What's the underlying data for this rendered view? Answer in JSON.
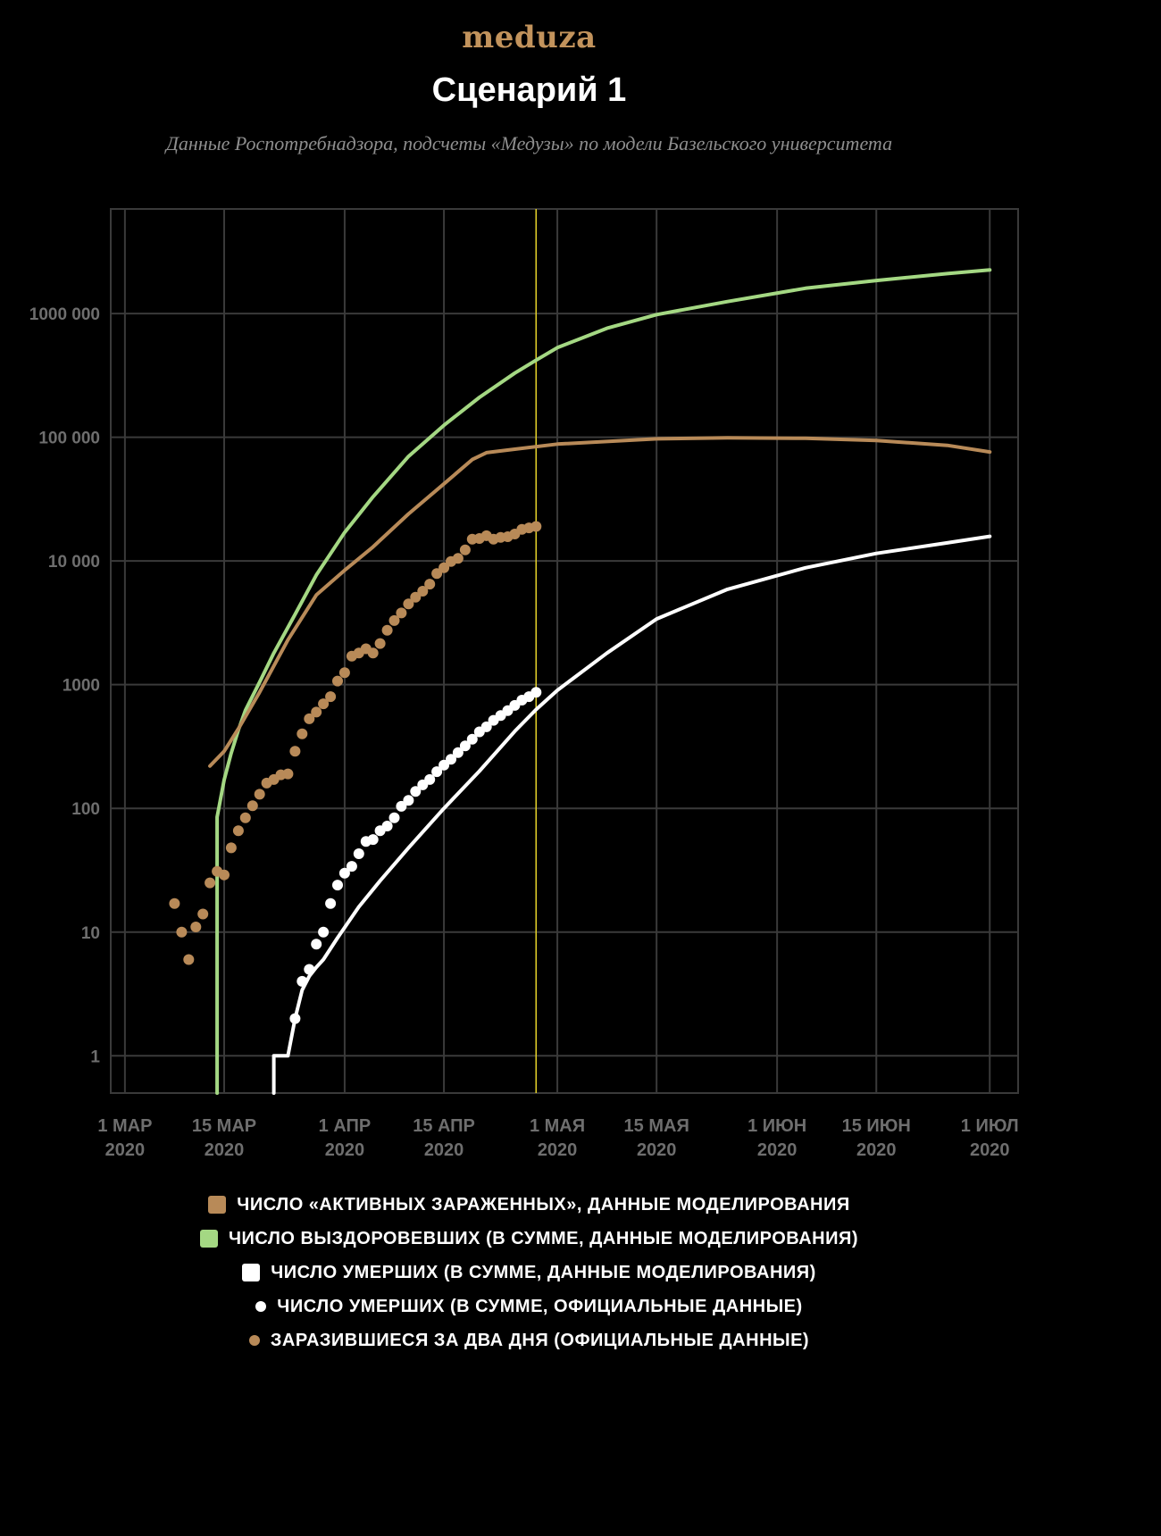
{
  "header": {
    "logo": "meduza",
    "title": "Сценарий 1",
    "subtitle": "Данные Роспотребнадзора, подсчеты «Медузы» по модели Базельского университета"
  },
  "colors": {
    "background": "#000000",
    "grid": "#3a3a3a",
    "tick_label": "#6e6e6e",
    "active": "#b88a58",
    "recovered": "#a4d883",
    "deaths": "#ffffff",
    "marker": "#e5d22a"
  },
  "legend": [
    {
      "label": "ЧИСЛО «АКТИВНЫХ ЗАРАЖЕННЫХ», ДАННЫЕ МОДЕЛИРОВАНИЯ",
      "color": "#b88a58",
      "shape": "square"
    },
    {
      "label": "ЧИСЛО ВЫЗДОРОВЕВШИХ (В СУММЕ, ДАННЫЕ МОДЕЛИРОВАНИЯ)",
      "color": "#a4d883",
      "shape": "square"
    },
    {
      "label": "ЧИСЛО УМЕРШИХ (В СУММЕ, ДАННЫЕ МОДЕЛИРОВАНИЯ)",
      "color": "#ffffff",
      "shape": "square"
    },
    {
      "label": "ЧИСЛО УМЕРШИХ (В СУММЕ, ОФИЦИАЛЬНЫЕ ДАННЫЕ)",
      "color": "#ffffff",
      "shape": "dot"
    },
    {
      "label": "ЗАРАЗИВШИЕСЯ ЗА ДВА ДНЯ (ОФИЦИАЛЬНЫЕ ДАННЫЕ)",
      "color": "#b88a58",
      "shape": "dot"
    }
  ],
  "chart_data": {
    "type": "line",
    "y_scale": "log",
    "ylim": [
      0.5,
      7000000
    ],
    "xlim": [
      "2020-02-28",
      "2020-07-05"
    ],
    "grid": true,
    "legend_position": "bottom",
    "x_ticks": [
      {
        "date": "2020-03-01",
        "label": [
          "1 МАР",
          "2020"
        ]
      },
      {
        "date": "2020-03-15",
        "label": [
          "15 МАР",
          "2020"
        ]
      },
      {
        "date": "2020-04-01",
        "label": [
          "1 АПР",
          "2020"
        ]
      },
      {
        "date": "2020-04-15",
        "label": [
          "15 АПР",
          "2020"
        ]
      },
      {
        "date": "2020-05-01",
        "label": [
          "1 МАЯ",
          "2020"
        ]
      },
      {
        "date": "2020-05-15",
        "label": [
          "15 МАЯ",
          "2020"
        ]
      },
      {
        "date": "2020-06-01",
        "label": [
          "1 ИЮН",
          "2020"
        ]
      },
      {
        "date": "2020-06-15",
        "label": [
          "15 ИЮН",
          "2020"
        ]
      },
      {
        "date": "2020-07-01",
        "label": [
          "1 ИЮЛ",
          "2020"
        ]
      }
    ],
    "y_ticks": [
      {
        "value": 1,
        "label": "1"
      },
      {
        "value": 10,
        "label": "10"
      },
      {
        "value": 100,
        "label": "100"
      },
      {
        "value": 1000,
        "label": "1000"
      },
      {
        "value": 10000,
        "label": "10 000"
      },
      {
        "value": 100000,
        "label": "100 000"
      },
      {
        "value": 1000000,
        "label": "1000 000"
      }
    ],
    "marker_line": {
      "date": "2020-04-28"
    },
    "series": [
      {
        "name": "ЧИСЛО ВЫЗДОРОВЕВШИХ (В СУММЕ, ДАННЫЕ МОДЕЛИРОВАНИЯ)",
        "kind": "line",
        "color": "#a4d883",
        "points": [
          [
            "2020-03-14",
            0.5
          ],
          [
            "2020-03-14",
            85
          ],
          [
            "2020-03-15",
            170
          ],
          [
            "2020-03-16",
            280
          ],
          [
            "2020-03-17",
            430
          ],
          [
            "2020-03-18",
            620
          ],
          [
            "2020-03-20",
            1050
          ],
          [
            "2020-03-22",
            1800
          ],
          [
            "2020-03-25",
            3700
          ],
          [
            "2020-03-28",
            7700
          ],
          [
            "2020-04-01",
            17000
          ],
          [
            "2020-04-05",
            33000
          ],
          [
            "2020-04-10",
            70000
          ],
          [
            "2020-04-15",
            125000
          ],
          [
            "2020-04-20",
            210000
          ],
          [
            "2020-04-25",
            330000
          ],
          [
            "2020-04-28",
            420000
          ],
          [
            "2020-05-01",
            530000
          ],
          [
            "2020-05-08",
            760000
          ],
          [
            "2020-05-15",
            980000
          ],
          [
            "2020-05-25",
            1250000
          ],
          [
            "2020-06-05",
            1600000
          ],
          [
            "2020-06-15",
            1850000
          ],
          [
            "2020-06-25",
            2100000
          ],
          [
            "2020-07-01",
            2250000
          ]
        ]
      },
      {
        "name": "ЧИСЛО «АКТИВНЫХ ЗАРАЖЕННЫХ», ДАННЫЕ МОДЕЛИРОВАНИЯ",
        "kind": "line",
        "color": "#b88a58",
        "points": [
          [
            "2020-03-13",
            220
          ],
          [
            "2020-03-15",
            290
          ],
          [
            "2020-03-17",
            440
          ],
          [
            "2020-03-20",
            870
          ],
          [
            "2020-03-24",
            2300
          ],
          [
            "2020-03-28",
            5300
          ],
          [
            "2020-04-01",
            8400
          ],
          [
            "2020-04-05",
            13000
          ],
          [
            "2020-04-10",
            24000
          ],
          [
            "2020-04-15",
            42000
          ],
          [
            "2020-04-19",
            66000
          ],
          [
            "2020-04-21",
            75000
          ],
          [
            "2020-04-25",
            80000
          ],
          [
            "2020-05-01",
            88000
          ],
          [
            "2020-05-15",
            97000
          ],
          [
            "2020-05-25",
            99000
          ],
          [
            "2020-06-05",
            98000
          ],
          [
            "2020-06-15",
            94000
          ],
          [
            "2020-06-25",
            86000
          ],
          [
            "2020-07-01",
            76000
          ]
        ]
      },
      {
        "name": "ЧИСЛО УМЕРШИХ (В СУММЕ, ДАННЫЕ МОДЕЛИРОВАНИЯ)",
        "kind": "line",
        "color": "#ffffff",
        "points": [
          [
            "2020-03-22",
            0.5
          ],
          [
            "2020-03-22",
            1
          ],
          [
            "2020-03-24",
            1
          ],
          [
            "2020-03-25",
            2
          ],
          [
            "2020-03-26",
            3.4
          ],
          [
            "2020-03-27",
            4.4
          ],
          [
            "2020-03-28",
            5.2
          ],
          [
            "2020-03-29",
            6
          ],
          [
            "2020-03-31",
            9
          ],
          [
            "2020-04-03",
            16
          ],
          [
            "2020-04-06",
            26
          ],
          [
            "2020-04-10",
            48
          ],
          [
            "2020-04-15",
            100
          ],
          [
            "2020-04-20",
            200
          ],
          [
            "2020-04-25",
            420
          ],
          [
            "2020-04-28",
            630
          ],
          [
            "2020-05-01",
            900
          ],
          [
            "2020-05-08",
            1800
          ],
          [
            "2020-05-15",
            3400
          ],
          [
            "2020-05-25",
            5900
          ],
          [
            "2020-06-05",
            8800
          ],
          [
            "2020-06-15",
            11500
          ],
          [
            "2020-06-25",
            14000
          ],
          [
            "2020-07-01",
            15800
          ]
        ]
      },
      {
        "name": "ЧИСЛО УМЕРШИХ (В СУММЕ, ОФИЦИАЛЬНЫЕ ДАННЫЕ)",
        "kind": "dots",
        "color": "#ffffff",
        "points": [
          [
            "2020-03-25",
            2
          ],
          [
            "2020-03-26",
            4
          ],
          [
            "2020-03-27",
            5
          ],
          [
            "2020-03-28",
            8
          ],
          [
            "2020-03-29",
            10
          ],
          [
            "2020-03-30",
            17
          ],
          [
            "2020-03-31",
            24
          ],
          [
            "2020-04-01",
            30
          ],
          [
            "2020-04-02",
            34
          ],
          [
            "2020-04-03",
            43
          ],
          [
            "2020-04-04",
            54
          ],
          [
            "2020-04-05",
            56
          ],
          [
            "2020-04-06",
            66
          ],
          [
            "2020-04-07",
            72
          ],
          [
            "2020-04-08",
            84
          ],
          [
            "2020-04-09",
            104
          ],
          [
            "2020-04-10",
            116
          ],
          [
            "2020-04-11",
            137
          ],
          [
            "2020-04-12",
            155
          ],
          [
            "2020-04-13",
            171
          ],
          [
            "2020-04-14",
            198
          ],
          [
            "2020-04-15",
            224
          ],
          [
            "2020-04-16",
            249
          ],
          [
            "2020-04-17",
            282
          ],
          [
            "2020-04-18",
            320
          ],
          [
            "2020-04-19",
            363
          ],
          [
            "2020-04-20",
            416
          ],
          [
            "2020-04-21",
            456
          ],
          [
            "2020-04-22",
            515
          ],
          [
            "2020-04-23",
            563
          ],
          [
            "2020-04-24",
            617
          ],
          [
            "2020-04-25",
            680
          ],
          [
            "2020-04-26",
            750
          ],
          [
            "2020-04-27",
            800
          ],
          [
            "2020-04-28",
            867
          ]
        ]
      },
      {
        "name": "ЗАРАЗИВШИЕСЯ ЗА ДВА ДНЯ (ОФИЦИАЛЬНЫЕ ДАННЫЕ)",
        "kind": "dots",
        "color": "#b88a58",
        "points": [
          [
            "2020-03-08",
            17
          ],
          [
            "2020-03-09",
            10
          ],
          [
            "2020-03-10",
            6
          ],
          [
            "2020-03-11",
            11
          ],
          [
            "2020-03-12",
            14
          ],
          [
            "2020-03-13",
            25
          ],
          [
            "2020-03-14",
            31
          ],
          [
            "2020-03-15",
            29
          ],
          [
            "2020-03-16",
            48
          ],
          [
            "2020-03-17",
            66
          ],
          [
            "2020-03-18",
            84
          ],
          [
            "2020-03-19",
            105
          ],
          [
            "2020-03-20",
            130
          ],
          [
            "2020-03-21",
            160
          ],
          [
            "2020-03-22",
            171
          ],
          [
            "2020-03-23",
            187
          ],
          [
            "2020-03-24",
            190
          ],
          [
            "2020-03-25",
            290
          ],
          [
            "2020-03-26",
            400
          ],
          [
            "2020-03-27",
            530
          ],
          [
            "2020-03-28",
            600
          ],
          [
            "2020-03-29",
            700
          ],
          [
            "2020-03-30",
            800
          ],
          [
            "2020-03-31",
            1070
          ],
          [
            "2020-04-01",
            1250
          ],
          [
            "2020-04-02",
            1700
          ],
          [
            "2020-04-03",
            1800
          ],
          [
            "2020-04-04",
            1950
          ],
          [
            "2020-04-05",
            1800
          ],
          [
            "2020-04-06",
            2150
          ],
          [
            "2020-04-07",
            2750
          ],
          [
            "2020-04-08",
            3300
          ],
          [
            "2020-04-09",
            3800
          ],
          [
            "2020-04-10",
            4500
          ],
          [
            "2020-04-11",
            5100
          ],
          [
            "2020-04-12",
            5700
          ],
          [
            "2020-04-13",
            6500
          ],
          [
            "2020-04-14",
            7900
          ],
          [
            "2020-04-15",
            8800
          ],
          [
            "2020-04-16",
            9900
          ],
          [
            "2020-04-17",
            10500
          ],
          [
            "2020-04-18",
            12300
          ],
          [
            "2020-04-19",
            15000
          ],
          [
            "2020-04-20",
            15200
          ],
          [
            "2020-04-21",
            16000
          ],
          [
            "2020-04-22",
            15000
          ],
          [
            "2020-04-23",
            15500
          ],
          [
            "2020-04-24",
            15700
          ],
          [
            "2020-04-25",
            16500
          ],
          [
            "2020-04-26",
            18000
          ],
          [
            "2020-04-27",
            18500
          ],
          [
            "2020-04-28",
            19000
          ]
        ]
      }
    ]
  }
}
